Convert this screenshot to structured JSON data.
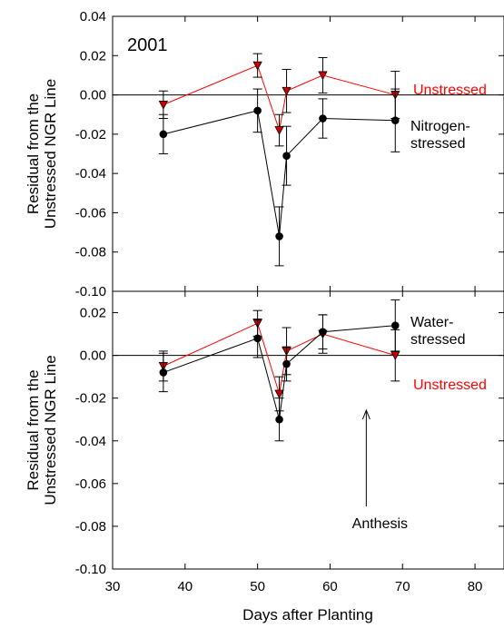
{
  "chart_data": {
    "type": "line",
    "xlabel": "Days after Planting",
    "x_ticks": [
      "30",
      "40",
      "50",
      "60",
      "70",
      "80"
    ],
    "xlim": [
      30,
      84
    ],
    "panels": [
      {
        "ylabel": [
          "Residual from the",
          "Unstressed NGR Line"
        ],
        "ylim": [
          -0.1,
          0.04
        ],
        "y_ticks": [
          "0.04",
          "0.02",
          "0.00",
          "-0.02",
          "-0.04",
          "-0.06",
          "-0.08",
          "-0.10"
        ],
        "reference_line": 0,
        "annotation": "2001",
        "series": [
          {
            "name": "Unstressed",
            "color": "#ff0000",
            "marker": "triangle-down",
            "x": [
              37,
              50,
              53,
              54,
              59,
              69
            ],
            "y": [
              -0.005,
              0.015,
              -0.018,
              0.002,
              0.01,
              0.0
            ],
            "err": [
              0.007,
              0.006,
              0.008,
              0.011,
              0.009,
              0.012
            ]
          },
          {
            "name": [
              "Nitrogen-",
              "stressed"
            ],
            "color": "#000000",
            "marker": "circle",
            "x": [
              37,
              50,
              53,
              54,
              59,
              69
            ],
            "y": [
              -0.02,
              -0.008,
              -0.072,
              -0.031,
              -0.012,
              -0.013
            ],
            "err": [
              0.01,
              0.011,
              0.015,
              0.015,
              0.01,
              0.016
            ]
          }
        ]
      },
      {
        "ylabel": [
          "Residual from the",
          "Unstressed NGR Line"
        ],
        "ylim": [
          -0.1,
          0.03
        ],
        "y_ticks": [
          "0.02",
          "0.00",
          "-0.02",
          "-0.04",
          "-0.06",
          "-0.08",
          "-0.10"
        ],
        "reference_line": 0,
        "annotation": "Anthesis",
        "annotation_x": 65,
        "series": [
          {
            "name": "Unstressed",
            "color": "#ff0000",
            "marker": "triangle-down",
            "x": [
              37,
              50,
              53,
              54,
              59,
              69
            ],
            "y": [
              -0.005,
              0.015,
              -0.018,
              0.002,
              0.01,
              0.0
            ],
            "err": [
              0.007,
              0.006,
              0.008,
              0.011,
              0.009,
              0.012
            ]
          },
          {
            "name": [
              "Water-",
              "stressed"
            ],
            "color": "#000000",
            "marker": "circle",
            "x": [
              37,
              50,
              53,
              54,
              59,
              69
            ],
            "y": [
              -0.008,
              0.008,
              -0.03,
              -0.004,
              0.011,
              0.014
            ],
            "err": [
              0.009,
              0.009,
              0.01,
              0.008,
              0.008,
              0.012
            ]
          }
        ]
      }
    ]
  }
}
